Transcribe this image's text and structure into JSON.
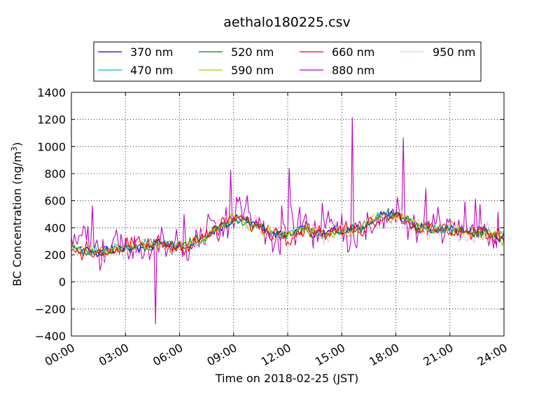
{
  "chart_data": {
    "type": "line",
    "title": "aethalo180225.csv",
    "xlabel": "Time on 2018-02-25 (JST)",
    "ylabel_main": "BC Concentration (ng/m",
    "ylabel_sup": "3",
    "ylabel_close": ")",
    "xlim": [
      "00:00",
      "24:00"
    ],
    "ylim": [
      -400,
      1400
    ],
    "grid": true,
    "legend_position": "top-center",
    "x_tick_labels": [
      "00:00",
      "03:00",
      "06:00",
      "09:00",
      "12:00",
      "15:00",
      "18:00",
      "21:00",
      "24:00"
    ],
    "y_tick_labels": [
      "−400",
      "−200",
      "0",
      "200",
      "400",
      "600",
      "800",
      "1000",
      "1200",
      "1400"
    ],
    "series": [
      {
        "name": "370 nm",
        "color": "#0000ff",
        "noise": 40,
        "jitter": 0
      },
      {
        "name": "470 nm",
        "color": "#00bfbf",
        "noise": 45,
        "jitter": 0
      },
      {
        "name": "520 nm",
        "color": "#008000",
        "noise": 45,
        "jitter": 0
      },
      {
        "name": "590 nm",
        "color": "#bfbf00",
        "noise": 50,
        "jitter": 0
      },
      {
        "name": "660 nm",
        "color": "#ff0000",
        "noise": 65,
        "jitter": 0
      },
      {
        "name": "880 nm",
        "color": "#bf00bf",
        "noise": 150,
        "jitter": 1
      },
      {
        "name": "950 nm",
        "color": "#ffc0cb",
        "noise": 80,
        "jitter": 0
      }
    ],
    "baseline_trend": {
      "hours": [
        0,
        1,
        2,
        3,
        4,
        5,
        6,
        7,
        8,
        9,
        10,
        11,
        12,
        13,
        14,
        15,
        16,
        17,
        18,
        19,
        20,
        21,
        22,
        23,
        24
      ],
      "values": [
        260,
        210,
        230,
        260,
        270,
        280,
        260,
        300,
        380,
        470,
        430,
        370,
        350,
        400,
        360,
        380,
        390,
        480,
        500,
        420,
        380,
        390,
        360,
        360,
        330
      ]
    },
    "notable_peaks_880nm": [
      {
        "hour": 15.6,
        "value": 1215
      },
      {
        "hour": 18.4,
        "value": 1065
      },
      {
        "hour": 12.1,
        "value": 840
      },
      {
        "hour": 8.8,
        "value": 825
      },
      {
        "hour": 4.7,
        "value": -310
      }
    ]
  }
}
